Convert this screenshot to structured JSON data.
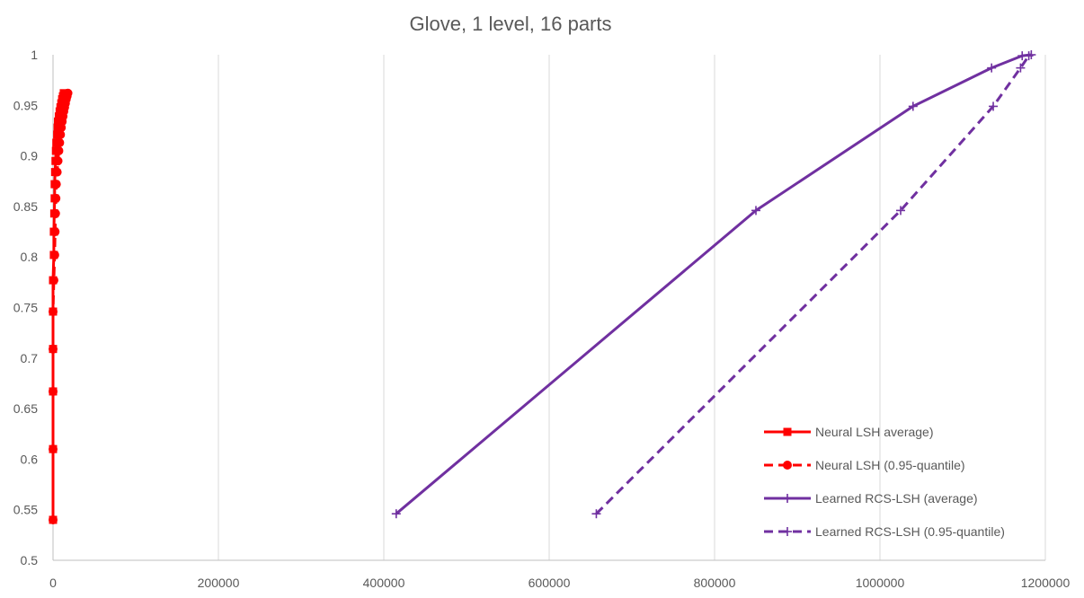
{
  "chart_data": {
    "type": "line",
    "title": "Glove, 1 level, 16 parts",
    "xlim": [
      0,
      1200000
    ],
    "ylim": [
      0.5,
      1
    ],
    "x_ticks": [
      0,
      200000,
      400000,
      600000,
      800000,
      1000000,
      1200000
    ],
    "y_ticks": [
      0.5,
      0.55,
      0.6,
      0.65,
      0.7,
      0.75,
      0.8,
      0.85,
      0.9,
      0.95,
      1
    ],
    "x_tick_labels": [
      "0",
      "200000",
      "400000",
      "600000",
      "800000",
      "1000000",
      "1200000"
    ],
    "y_tick_labels": [
      "0.5",
      "0.55",
      "0.6",
      "0.65",
      "0.7",
      "0.75",
      "0.8",
      "0.85",
      "0.9",
      "0.95",
      "1"
    ],
    "grid": "vertical",
    "legend_position": "bottom-right",
    "series": [
      {
        "name": "Neural LSH average)",
        "color": "#ff0000",
        "dash": "solid",
        "marker": "square",
        "x": [
          0,
          0,
          0,
          0,
          0,
          0,
          1000,
          1000,
          1500,
          2000,
          2000,
          2500,
          3000,
          3500,
          4000,
          5000,
          5500,
          6000,
          7000,
          8000,
          9000,
          10000,
          11000,
          12000,
          13000
        ],
        "y": [
          0.54,
          0.61,
          0.667,
          0.709,
          0.746,
          0.777,
          0.802,
          0.825,
          0.843,
          0.858,
          0.872,
          0.884,
          0.895,
          0.905,
          0.913,
          0.921,
          0.928,
          0.934,
          0.939,
          0.944,
          0.948,
          0.952,
          0.956,
          0.959,
          0.962
        ]
      },
      {
        "name": "Neural LSH (0.95-quantile)",
        "color": "#ff0000",
        "dash": "dashed",
        "marker": "circle",
        "x": [
          0,
          0,
          0,
          0,
          0,
          1000,
          2000,
          2500,
          3000,
          3500,
          4000,
          5000,
          6000,
          7000,
          8000,
          9000,
          10000,
          11000,
          12000,
          13000,
          14000,
          15000,
          16000,
          17000,
          18000
        ],
        "y": [
          0.54,
          0.61,
          0.667,
          0.709,
          0.746,
          0.777,
          0.802,
          0.825,
          0.843,
          0.858,
          0.872,
          0.884,
          0.895,
          0.905,
          0.913,
          0.921,
          0.928,
          0.934,
          0.939,
          0.944,
          0.948,
          0.952,
          0.956,
          0.959,
          0.962
        ]
      },
      {
        "name": "Learned RCS-LSH (average)",
        "color": "#7030a0",
        "dash": "solid",
        "marker": "plus",
        "x": [
          415000,
          850000,
          1040000,
          1135000,
          1172000,
          1183000
        ],
        "y": [
          0.546,
          0.846,
          0.949,
          0.987,
          0.999,
          1.0
        ]
      },
      {
        "name": "Learned RCS-LSH (0.95-quantile)",
        "color": "#7030a0",
        "dash": "dashed",
        "marker": "plus",
        "x": [
          657000,
          1025000,
          1137000,
          1170000,
          1180000
        ],
        "y": [
          0.546,
          0.846,
          0.949,
          0.987,
          0.999
        ]
      }
    ]
  }
}
